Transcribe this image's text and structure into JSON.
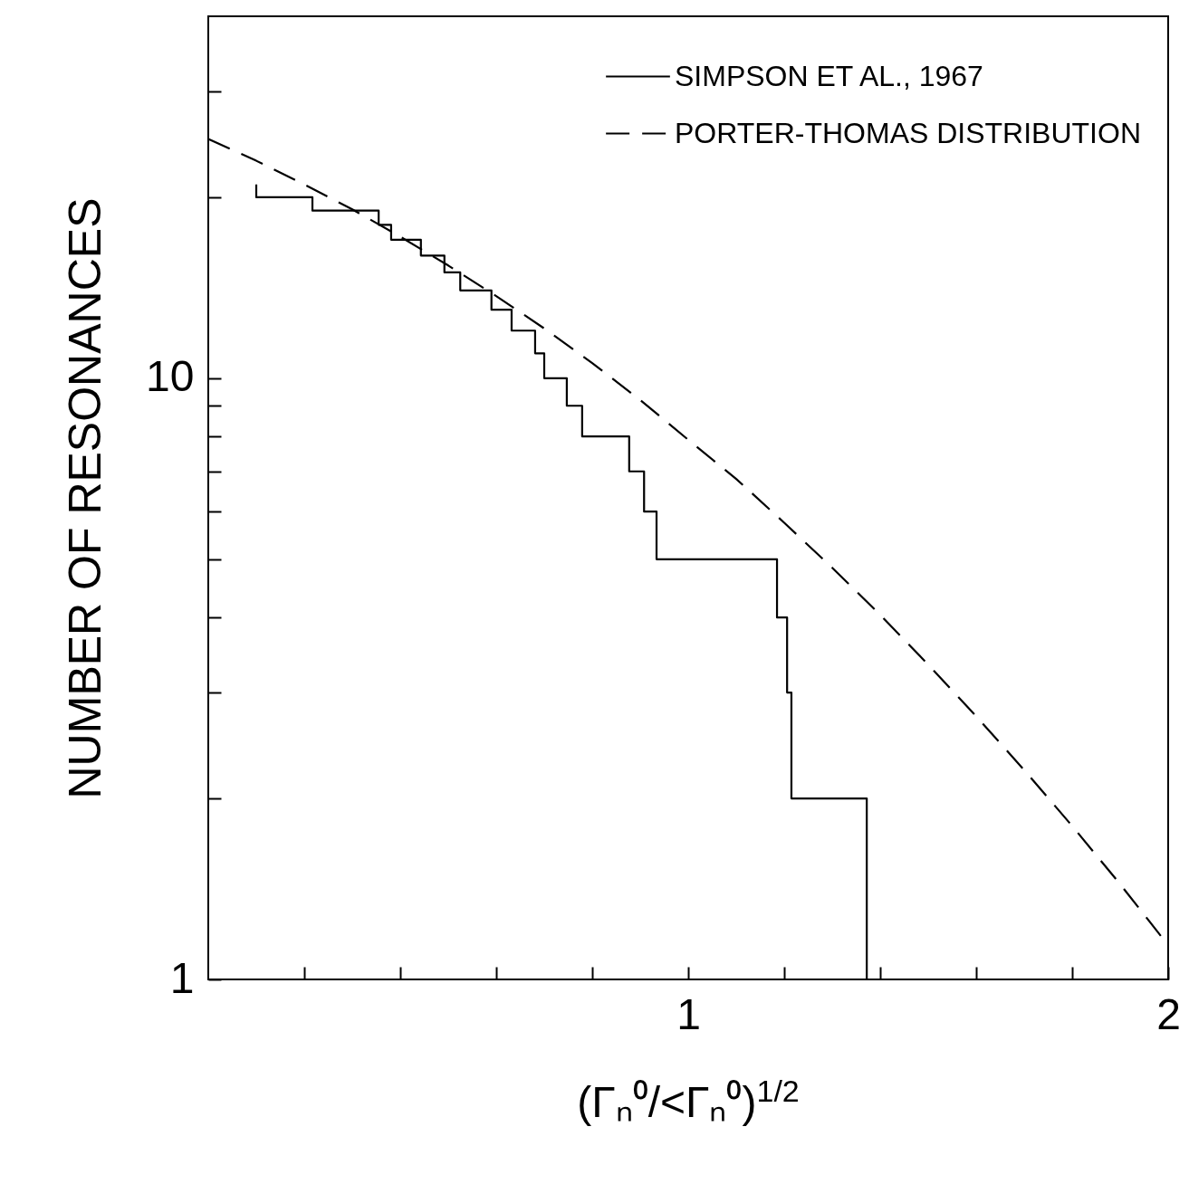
{
  "chart_data": {
    "type": "line",
    "xlabel": "(Γₙ⁰/<Γₙ⁰)$^{1/2}$",
    "ylabel": "NUMBER OF RESONANCES",
    "log": "y",
    "legend": "top right",
    "xlim": [
      0,
      2
    ],
    "xticks": [
      {
        "value": 0.2,
        "label": null
      },
      {
        "value": 0.4,
        "label": null
      },
      {
        "value": 0.6,
        "label": null
      },
      {
        "value": 0.8,
        "label": null
      },
      1,
      {
        "value": 1.2,
        "label": null
      },
      {
        "value": 1.4,
        "label": null
      },
      {
        "value": 1.6,
        "label": null
      },
      {
        "value": 1.8,
        "label": null
      },
      2
    ],
    "ylim": [
      1,
      40
    ],
    "yticks": [
      1,
      {
        "value": 2,
        "label": null
      },
      {
        "value": 3,
        "label": null
      },
      {
        "value": 4,
        "label": null
      },
      {
        "value": 5,
        "label": null
      },
      {
        "value": 6,
        "label": null
      },
      {
        "value": 7,
        "label": null
      },
      {
        "value": 8,
        "label": null
      },
      {
        "value": 9,
        "label": null
      },
      10,
      {
        "value": 20,
        "label": null
      },
      {
        "value": 30,
        "label": null
      }
    ],
    "series": [
      {
        "name": "SIMPSON ET AL., 1967",
        "type": "step",
        "color": "#000000",
        "line_style": "solid",
        "x": [
          0.1,
          0.1,
          0.217,
          0.355,
          0.381,
          0.443,
          0.492,
          0.525,
          0.59,
          0.632,
          0.681,
          0.7,
          0.747,
          0.779,
          0.877,
          0.908,
          0.934,
          1.185,
          1.206,
          1.215,
          1.372
        ],
        "values": [
          21,
          20,
          19,
          18,
          17,
          16,
          15,
          14,
          13,
          12,
          11,
          10,
          9,
          8,
          7,
          6,
          5,
          4,
          3,
          2,
          1
        ]
      },
      {
        "name": "PORTER-THOMAS DISTRIBUTION",
        "type": "line",
        "color": "#000000",
        "line_style": "dashed",
        "x": [
          0,
          0.1,
          0.2,
          0.3,
          0.4,
          0.5,
          0.6,
          0.7,
          0.8,
          0.9,
          1.0,
          1.1,
          1.2,
          1.3,
          1.4,
          1.5,
          1.6,
          1.7,
          1.8,
          1.9,
          2.0
        ],
        "values": [
          25,
          23,
          21,
          19.1,
          17.2,
          15.4,
          13.7,
          12.1,
          10.6,
          9.2,
          7.9,
          6.8,
          5.75,
          4.84,
          4.04,
          3.34,
          2.74,
          2.23,
          1.8,
          1.44,
          1.14
        ]
      }
    ]
  }
}
